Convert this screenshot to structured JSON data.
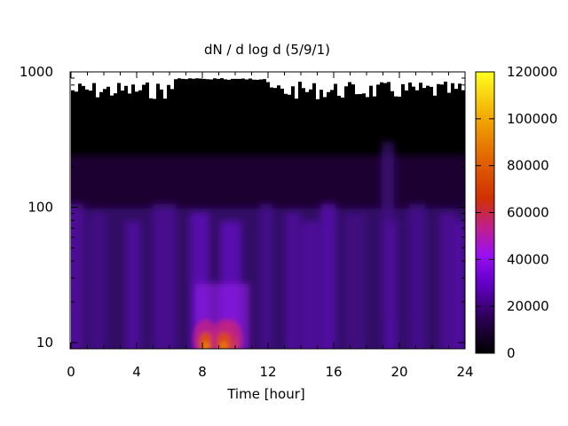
{
  "chart_data": {
    "type": "heatmap",
    "title": "dN / d log d (5/9/1)",
    "xlabel": "Time [hour]",
    "ylabel": "",
    "xlim": [
      0,
      24
    ],
    "ylim": [
      9,
      1000
    ],
    "y_scale": "log",
    "x_ticks": [
      "0",
      "4",
      "8",
      "12",
      "16",
      "20",
      "24"
    ],
    "y_ticks": [
      "10",
      "100",
      "1000"
    ],
    "colorbar": {
      "range": [
        0,
        120000
      ],
      "ticks": [
        "0",
        "20000",
        "40000",
        "60000",
        "80000",
        "100000",
        "120000"
      ],
      "colormap": "gnuplot palette (black-purple-red-yellow)"
    },
    "hotspots": [
      {
        "time": 8.2,
        "diameter": 10,
        "value": 85000
      },
      {
        "time": 9.7,
        "diameter": 10,
        "value": 95000
      },
      {
        "time": 9.3,
        "diameter": 10,
        "value": 75000
      }
    ],
    "grid": false,
    "legend": "colorbar-right"
  }
}
